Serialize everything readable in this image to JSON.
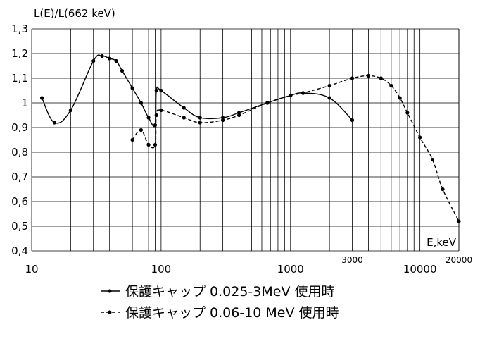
{
  "chart_data": {
    "type": "line",
    "title": "",
    "ylabel": "L(E)/L(662 keV)",
    "xlabel": "E,keV",
    "x_scale": "log",
    "xlim": [
      10,
      20000
    ],
    "ylim": [
      0.4,
      1.3
    ],
    "grid": true,
    "legend_position": "bottom",
    "y_ticks": [
      "0,4",
      "0,5",
      "0,6",
      "0,7",
      "0,8",
      "0,9",
      "1",
      "1,1",
      "1,2",
      "1,3"
    ],
    "x_ticks": [
      "10",
      "100",
      "1000",
      "10000"
    ],
    "x_ticks_small": [
      "3000",
      "20000"
    ],
    "series": [
      {
        "name": "保護キャップ 0.025-3MeV 使用時",
        "style": "solid",
        "x": [
          12,
          15,
          20,
          30,
          35,
          40,
          45,
          50,
          60,
          70,
          80,
          90,
          92,
          100,
          150,
          200,
          300,
          400,
          662,
          1000,
          1250,
          2000,
          3000
        ],
        "y": [
          1.02,
          0.92,
          0.97,
          1.17,
          1.19,
          1.18,
          1.17,
          1.13,
          1.06,
          1.0,
          0.94,
          0.91,
          1.05,
          1.05,
          0.98,
          0.94,
          0.94,
          0.96,
          1.0,
          1.03,
          1.04,
          1.02,
          0.93
        ]
      },
      {
        "name": "保護キャップ 0.06-10 MeV 使用時",
        "style": "dashed",
        "x": [
          60,
          70,
          80,
          90,
          92,
          100,
          150,
          200,
          300,
          400,
          662,
          1000,
          1250,
          2000,
          3000,
          4000,
          5000,
          6000,
          7000,
          8000,
          10000,
          12500,
          15000,
          20000
        ],
        "y": [
          0.85,
          0.89,
          0.83,
          0.83,
          0.95,
          0.97,
          0.94,
          0.92,
          0.93,
          0.95,
          1.0,
          1.03,
          1.04,
          1.07,
          1.1,
          1.11,
          1.1,
          1.07,
          1.02,
          0.96,
          0.86,
          0.77,
          0.65,
          0.52
        ]
      }
    ]
  },
  "colors": {
    "line": "#000000",
    "grid": "#000000",
    "background": "#ffffff"
  }
}
